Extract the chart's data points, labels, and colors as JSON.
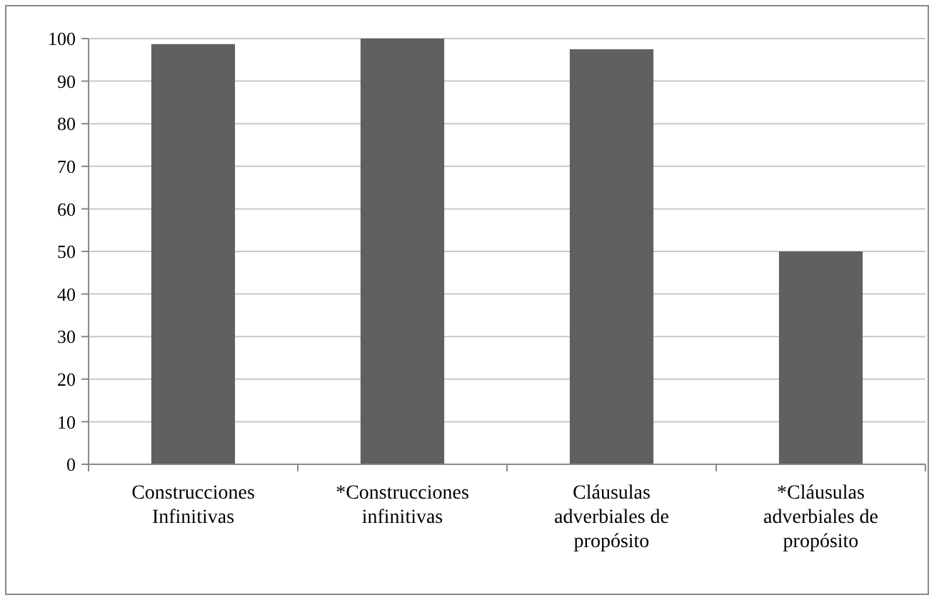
{
  "chart_data": {
    "type": "bar",
    "categories": [
      "Construcciones Infinitivas",
      "*Construcciones infinitivas",
      "Cláusulas adverbiales de propósito",
      "*Cláusulas adverbiales de propósito"
    ],
    "values": [
      98.7,
      100,
      97.5,
      50
    ],
    "color": "#606060",
    "ylim": [
      0,
      100
    ],
    "yticks": [
      0,
      10,
      20,
      30,
      40,
      50,
      60,
      70,
      80,
      90,
      100
    ],
    "grid": "y"
  }
}
